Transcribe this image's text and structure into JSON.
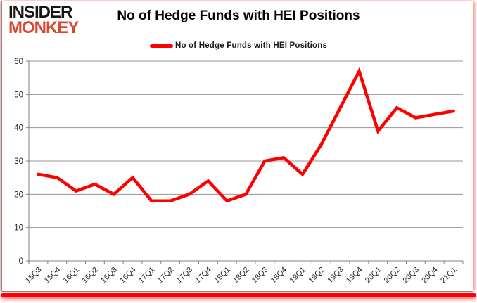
{
  "logo": {
    "line1": "INSIDER",
    "line2": "MONKEY"
  },
  "header": {
    "title": "No of Hedge Funds with HEI Positions"
  },
  "legend": {
    "label": "No of Hedge Funds with HEI Positions"
  },
  "colors": {
    "line": "#FF0000",
    "logo_red": "#D9482E",
    "grid": "#969696",
    "axis": "#808080",
    "tick_text": "#262626",
    "bottom_bar": "#FF0000"
  },
  "chart_data": {
    "type": "line",
    "title": "No of Hedge Funds with HEI Positions",
    "categories": [
      "15Q3",
      "15Q4",
      "16Q1",
      "16Q2",
      "16Q3",
      "16Q4",
      "17Q1",
      "17Q2",
      "17Q3",
      "17Q4",
      "18Q1",
      "18Q2",
      "18Q3",
      "18Q4",
      "19Q1",
      "19Q2",
      "19Q3",
      "19Q4",
      "20Q1",
      "20Q2",
      "20Q3",
      "20Q4",
      "21Q1"
    ],
    "series": [
      {
        "name": "No of Hedge Funds with HEI Positions",
        "color": "#FF0000",
        "values": [
          26,
          25,
          21,
          23,
          20,
          25,
          18,
          18,
          20,
          24,
          18,
          20,
          30,
          31,
          26,
          35,
          46,
          57,
          39,
          46,
          43,
          44,
          45
        ]
      }
    ],
    "xlabel": "",
    "ylabel": "",
    "ylim": [
      0,
      60
    ],
    "yticks": [
      0,
      10,
      20,
      30,
      40,
      50,
      60
    ],
    "grid": "horizontal",
    "legend_position": "top-center",
    "x_tick_rotation": -45
  }
}
